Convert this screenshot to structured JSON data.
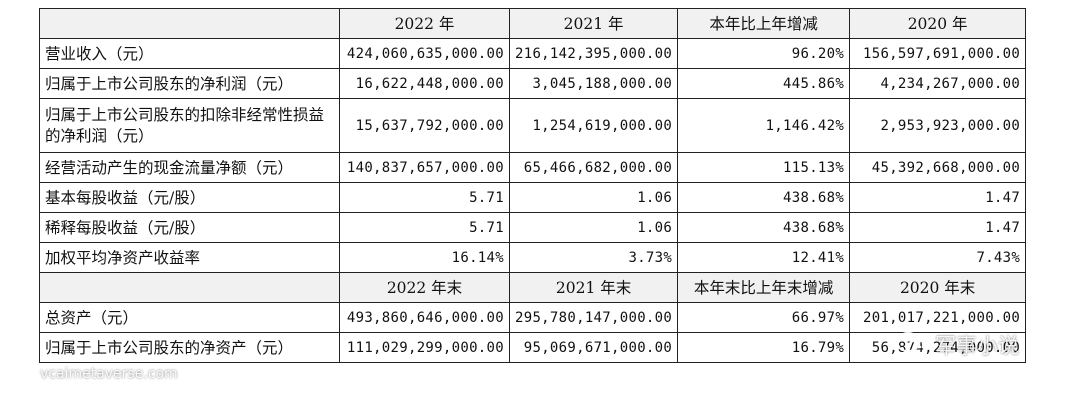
{
  "table": {
    "header1": [
      "",
      "2022 年",
      "2021 年",
      "本年比上年增减",
      "2020 年"
    ],
    "rows1": [
      {
        "label": "营业收入（元）",
        "y2022": "424,060,635,000.00",
        "y2021": "216,142,395,000.00",
        "change": "96.20%",
        "y2020": "156,597,691,000.00"
      },
      {
        "label": "归属于上市公司股东的净利润（元）",
        "y2022": "16,622,448,000.00",
        "y2021": "3,045,188,000.00",
        "change": "445.86%",
        "y2020": "4,234,267,000.00"
      },
      {
        "label": "归属于上市公司股东的扣除非经常性损益的净利润（元）",
        "y2022": "15,637,792,000.00",
        "y2021": "1,254,619,000.00",
        "change": "1,146.42%",
        "y2020": "2,953,923,000.00"
      },
      {
        "label": "经营活动产生的现金流量净额（元）",
        "y2022": "140,837,657,000.00",
        "y2021": "65,466,682,000.00",
        "change": "115.13%",
        "y2020": "45,392,668,000.00"
      },
      {
        "label": "基本每股收益（元/股）",
        "y2022": "5.71",
        "y2021": "1.06",
        "change": "438.68%",
        "y2020": "1.47"
      },
      {
        "label": "稀释每股收益（元/股）",
        "y2022": "5.71",
        "y2021": "1.06",
        "change": "438.68%",
        "y2020": "1.47"
      },
      {
        "label": "加权平均净资产收益率",
        "y2022": "16.14%",
        "y2021": "3.73%",
        "change": "12.41%",
        "y2020": "7.43%"
      }
    ],
    "header2": [
      "",
      "2022 年末",
      "2021 年末",
      "本年末比上年末增减",
      "2020 年末"
    ],
    "rows2": [
      {
        "label": "总资产（元）",
        "y2022": "493,860,646,000.00",
        "y2021": "295,780,147,000.00",
        "change": "66.97%",
        "y2020": "201,017,221,000.00"
      },
      {
        "label": "归属于上市公司股东的净资产（元）",
        "y2022": "111,029,299,000.00",
        "y2021": "95,069,671,000.00",
        "change": "16.79%",
        "y2020": "56,874,274,000.00"
      }
    ]
  },
  "watermarks": {
    "left": "vcaimetaverse.com",
    "right": "军事小说",
    "right_icon": "wechat-icon"
  }
}
